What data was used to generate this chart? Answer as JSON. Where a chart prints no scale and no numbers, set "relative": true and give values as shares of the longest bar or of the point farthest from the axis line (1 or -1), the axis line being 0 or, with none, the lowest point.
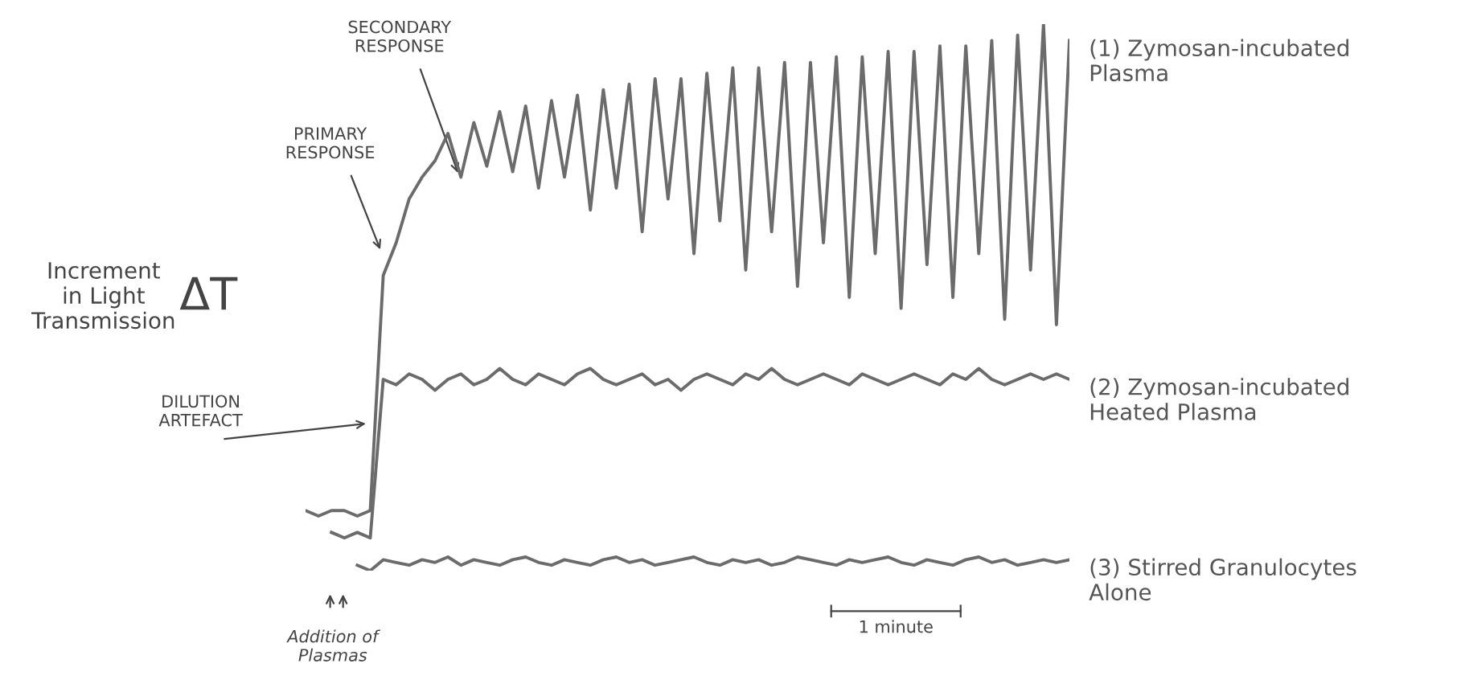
{
  "chart_data": {
    "type": "line",
    "relative": true,
    "categories": [
      null,
      null,
      null,
      null,
      null,
      null,
      null,
      null,
      null,
      null,
      null,
      null,
      null,
      null,
      null,
      null,
      null,
      null,
      null,
      null,
      null,
      null,
      null,
      null,
      null,
      null,
      null,
      null,
      null,
      null,
      null,
      null,
      null,
      null,
      null,
      null,
      null,
      null,
      null,
      null,
      null,
      null,
      null,
      null,
      null,
      null,
      null,
      null,
      null,
      null,
      null,
      null,
      null,
      null,
      null,
      null,
      null,
      null,
      null,
      null
    ],
    "series": [
      {
        "name": "(1) Zymosan-incubated\nPlasma",
        "color": "#6b6b6b",
        "values": [
          0.11,
          0.1,
          0.11,
          0.11,
          0.1,
          0.11,
          0.54,
          0.6,
          0.68,
          0.72,
          0.75,
          0.8,
          0.72,
          0.82,
          0.74,
          0.84,
          0.73,
          0.85,
          0.7,
          0.86,
          0.72,
          0.87,
          0.66,
          0.88,
          0.7,
          0.89,
          0.62,
          0.9,
          0.68,
          0.9,
          0.58,
          0.91,
          0.64,
          0.92,
          0.55,
          0.92,
          0.62,
          0.93,
          0.52,
          0.93,
          0.6,
          0.94,
          0.5,
          0.94,
          0.58,
          0.95,
          0.48,
          0.95,
          0.56,
          0.96,
          0.5,
          0.96,
          0.58,
          0.97,
          0.46,
          0.98,
          0.55,
          1.0,
          0.45,
          0.97
        ]
      },
      {
        "name": "(2) Zymosan-incubated\nHeated Plasma",
        "color": "#6b6b6b",
        "values": [
          null,
          null,
          0.07,
          0.06,
          0.07,
          0.06,
          0.35,
          0.34,
          0.36,
          0.35,
          0.33,
          0.35,
          0.36,
          0.34,
          0.35,
          0.37,
          0.35,
          0.34,
          0.36,
          0.35,
          0.34,
          0.36,
          0.37,
          0.35,
          0.34,
          0.35,
          0.36,
          0.34,
          0.35,
          0.33,
          0.35,
          0.36,
          0.35,
          0.34,
          0.36,
          0.35,
          0.37,
          0.35,
          0.34,
          0.35,
          0.36,
          0.35,
          0.34,
          0.36,
          0.35,
          0.34,
          0.35,
          0.36,
          0.35,
          0.34,
          0.36,
          0.35,
          0.37,
          0.35,
          0.34,
          0.35,
          0.36,
          0.35,
          0.36,
          0.35
        ]
      },
      {
        "name": "(3) Stirred Granulocytes\nAlone",
        "color": "#6b6b6b",
        "values": [
          null,
          null,
          null,
          null,
          0.01,
          0.0,
          0.02,
          0.015,
          0.01,
          0.02,
          0.015,
          0.025,
          0.01,
          0.02,
          0.015,
          0.01,
          0.02,
          0.025,
          0.015,
          0.01,
          0.02,
          0.015,
          0.01,
          0.02,
          0.025,
          0.015,
          0.02,
          0.01,
          0.015,
          0.02,
          0.025,
          0.015,
          0.01,
          0.02,
          0.015,
          0.02,
          0.01,
          0.015,
          0.025,
          0.02,
          0.015,
          0.01,
          0.02,
          0.015,
          0.02,
          0.025,
          0.015,
          0.01,
          0.02,
          0.015,
          0.01,
          0.02,
          0.025,
          0.015,
          0.02,
          0.01,
          0.015,
          0.02,
          0.015,
          0.02
        ]
      }
    ],
    "annotations": [
      "Increment\nin Light\nTransmission",
      "SECONDARY\nRESPONSE",
      "PRIMARY\nRESPONSE",
      "DILUTION\nARTEFACT",
      "ΔT",
      "Addition of\nPlasmas",
      "1 minute"
    ]
  }
}
